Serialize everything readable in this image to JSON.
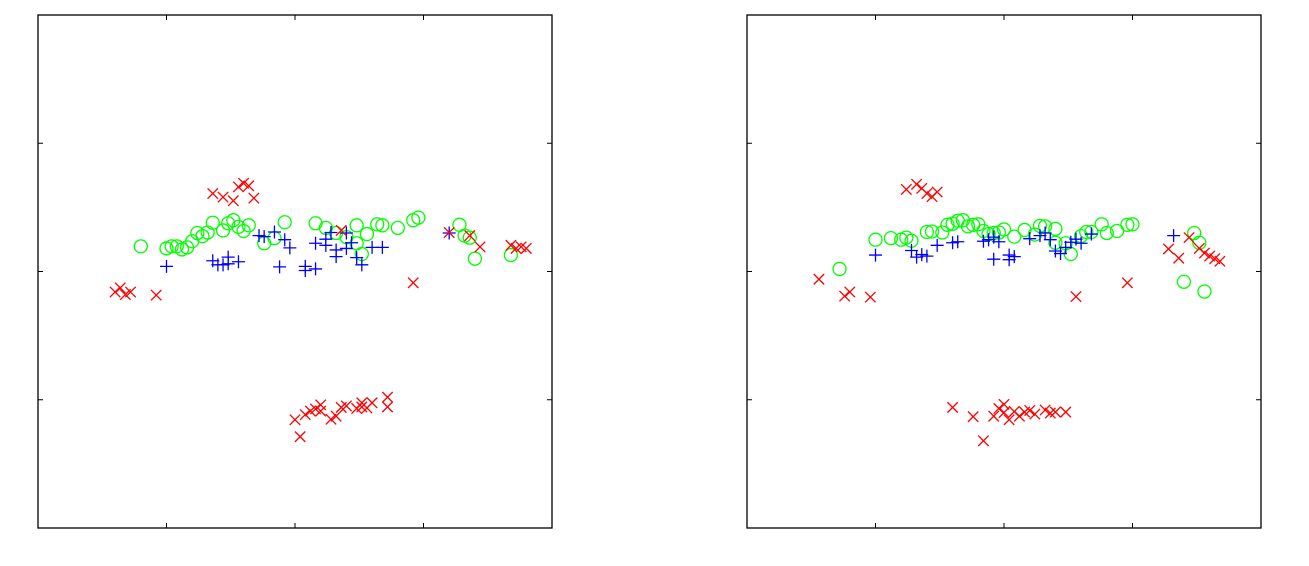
{
  "colors": {
    "circle": "#00ff00",
    "plus": "#0000ff",
    "cross": "#ff0000",
    "axes": "#000000"
  },
  "chart_data": [
    {
      "type": "scatter",
      "title": "",
      "xlabel": "",
      "ylabel": "",
      "xlim": [
        0,
        1
      ],
      "ylim": [
        0,
        1
      ],
      "xticks": [
        0.25,
        0.5,
        0.75
      ],
      "yticks": [
        0.25,
        0.5,
        0.75
      ],
      "grid": false,
      "legend": null,
      "series": [
        {
          "marker": "circle",
          "color": "#00ff00",
          "points": [
            [
              0.2,
              0.549
            ],
            [
              0.25,
              0.545
            ],
            [
              0.26,
              0.549
            ],
            [
              0.27,
              0.549
            ],
            [
              0.28,
              0.543
            ],
            [
              0.29,
              0.547
            ],
            [
              0.3,
              0.559
            ],
            [
              0.31,
              0.575
            ],
            [
              0.32,
              0.569
            ],
            [
              0.33,
              0.576
            ],
            [
              0.34,
              0.595
            ],
            [
              0.36,
              0.58
            ],
            [
              0.37,
              0.594
            ],
            [
              0.38,
              0.6
            ],
            [
              0.39,
              0.587
            ],
            [
              0.4,
              0.579
            ],
            [
              0.41,
              0.59
            ],
            [
              0.44,
              0.555
            ],
            [
              0.48,
              0.596
            ],
            [
              0.54,
              0.594
            ],
            [
              0.56,
              0.585
            ],
            [
              0.58,
              0.575
            ],
            [
              0.6,
              0.567
            ],
            [
              0.62,
              0.59
            ],
            [
              0.62,
              0.555
            ],
            [
              0.63,
              0.534
            ],
            [
              0.64,
              0.573
            ],
            [
              0.66,
              0.592
            ],
            [
              0.67,
              0.59
            ],
            [
              0.7,
              0.585
            ],
            [
              0.73,
              0.6
            ],
            [
              0.74,
              0.605
            ],
            [
              0.82,
              0.591
            ],
            [
              0.83,
              0.57
            ],
            [
              0.85,
              0.525
            ],
            [
              0.92,
              0.532
            ],
            [
              0.84,
              0.566
            ],
            [
              0.46,
              0.565
            ]
          ]
        },
        {
          "marker": "plus",
          "color": "#0000ff",
          "points": [
            [
              0.25,
              0.51
            ],
            [
              0.34,
              0.521
            ],
            [
              0.35,
              0.513
            ],
            [
              0.36,
              0.513
            ],
            [
              0.37,
              0.515
            ],
            [
              0.37,
              0.528
            ],
            [
              0.39,
              0.519
            ],
            [
              0.43,
              0.57
            ],
            [
              0.44,
              0.568
            ],
            [
              0.46,
              0.577
            ],
            [
              0.47,
              0.509
            ],
            [
              0.48,
              0.562
            ],
            [
              0.49,
              0.546
            ],
            [
              0.52,
              0.51
            ],
            [
              0.52,
              0.502
            ],
            [
              0.54,
              0.505
            ],
            [
              0.54,
              0.555
            ],
            [
              0.56,
              0.563
            ],
            [
              0.56,
              0.551
            ],
            [
              0.57,
              0.576
            ],
            [
              0.58,
              0.529
            ],
            [
              0.58,
              0.542
            ],
            [
              0.6,
              0.545
            ],
            [
              0.6,
              0.575
            ],
            [
              0.61,
              0.556
            ],
            [
              0.62,
              0.527
            ],
            [
              0.63,
              0.513
            ],
            [
              0.65,
              0.547
            ],
            [
              0.67,
              0.547
            ],
            [
              0.8,
              0.575
            ]
          ]
        },
        {
          "marker": "cross",
          "color": "#ff0000",
          "points": [
            [
              0.15,
              0.46
            ],
            [
              0.16,
              0.468
            ],
            [
              0.17,
              0.455
            ],
            [
              0.18,
              0.46
            ],
            [
              0.23,
              0.454
            ],
            [
              0.34,
              0.652
            ],
            [
              0.36,
              0.645
            ],
            [
              0.38,
              0.638
            ],
            [
              0.39,
              0.665
            ],
            [
              0.4,
              0.672
            ],
            [
              0.41,
              0.667
            ],
            [
              0.42,
              0.643
            ],
            [
              0.5,
              0.211
            ],
            [
              0.51,
              0.178
            ],
            [
              0.52,
              0.221
            ],
            [
              0.53,
              0.228
            ],
            [
              0.54,
              0.232
            ],
            [
              0.55,
              0.24
            ],
            [
              0.55,
              0.228
            ],
            [
              0.57,
              0.212
            ],
            [
              0.58,
              0.218
            ],
            [
              0.59,
              0.235
            ],
            [
              0.6,
              0.238
            ],
            [
              0.62,
              0.233
            ],
            [
              0.63,
              0.236
            ],
            [
              0.63,
              0.244
            ],
            [
              0.64,
              0.234
            ],
            [
              0.65,
              0.244
            ],
            [
              0.68,
              0.255
            ],
            [
              0.68,
              0.236
            ],
            [
              0.73,
              0.478
            ],
            [
              0.8,
              0.576
            ],
            [
              0.84,
              0.57
            ],
            [
              0.86,
              0.548
            ],
            [
              0.92,
              0.551
            ],
            [
              0.93,
              0.545
            ],
            [
              0.94,
              0.548
            ],
            [
              0.95,
              0.545
            ],
            [
              0.59,
              0.58
            ]
          ]
        }
      ]
    },
    {
      "type": "scatter",
      "title": "",
      "xlabel": "",
      "ylabel": "",
      "xlim": [
        0,
        1
      ],
      "ylim": [
        0,
        1
      ],
      "xticks": [
        0.25,
        0.5,
        0.75
      ],
      "yticks": [
        0.25,
        0.5,
        0.75
      ],
      "grid": false,
      "legend": null,
      "series": [
        {
          "marker": "circle",
          "color": "#00ff00",
          "points": [
            [
              0.18,
              0.505
            ],
            [
              0.25,
              0.562
            ],
            [
              0.28,
              0.565
            ],
            [
              0.3,
              0.562
            ],
            [
              0.31,
              0.566
            ],
            [
              0.32,
              0.56
            ],
            [
              0.35,
              0.577
            ],
            [
              0.36,
              0.578
            ],
            [
              0.38,
              0.576
            ],
            [
              0.4,
              0.593
            ],
            [
              0.41,
              0.599
            ],
            [
              0.42,
              0.6
            ],
            [
              0.43,
              0.588
            ],
            [
              0.44,
              0.591
            ],
            [
              0.45,
              0.592
            ],
            [
              0.46,
              0.579
            ],
            [
              0.47,
              0.573
            ],
            [
              0.48,
              0.575
            ],
            [
              0.5,
              0.582
            ],
            [
              0.52,
              0.568
            ],
            [
              0.54,
              0.581
            ],
            [
              0.57,
              0.589
            ],
            [
              0.58,
              0.588
            ],
            [
              0.6,
              0.583
            ],
            [
              0.6,
              0.556
            ],
            [
              0.62,
              0.555
            ],
            [
              0.63,
              0.534
            ],
            [
              0.65,
              0.569
            ],
            [
              0.66,
              0.577
            ],
            [
              0.67,
              0.577
            ],
            [
              0.7,
              0.575
            ],
            [
              0.72,
              0.579
            ],
            [
              0.74,
              0.591
            ],
            [
              0.75,
              0.592
            ],
            [
              0.87,
              0.575
            ],
            [
              0.88,
              0.556
            ],
            [
              0.89,
              0.461
            ],
            [
              0.85,
              0.48
            ],
            [
              0.69,
              0.592
            ],
            [
              0.39,
              0.591
            ],
            [
              0.49,
              0.576
            ],
            [
              0.56,
              0.572
            ]
          ]
        },
        {
          "marker": "plus",
          "color": "#0000ff",
          "points": [
            [
              0.25,
              0.532
            ],
            [
              0.32,
              0.541
            ],
            [
              0.33,
              0.528
            ],
            [
              0.34,
              0.533
            ],
            [
              0.35,
              0.53
            ],
            [
              0.37,
              0.551
            ],
            [
              0.4,
              0.556
            ],
            [
              0.41,
              0.558
            ],
            [
              0.46,
              0.559
            ],
            [
              0.47,
              0.562
            ],
            [
              0.48,
              0.524
            ],
            [
              0.48,
              0.567
            ],
            [
              0.49,
              0.558
            ],
            [
              0.51,
              0.523
            ],
            [
              0.51,
              0.532
            ],
            [
              0.52,
              0.529
            ],
            [
              0.55,
              0.564
            ],
            [
              0.57,
              0.57
            ],
            [
              0.58,
              0.575
            ],
            [
              0.59,
              0.562
            ],
            [
              0.6,
              0.54
            ],
            [
              0.61,
              0.535
            ],
            [
              0.62,
              0.547
            ],
            [
              0.63,
              0.557
            ],
            [
              0.64,
              0.563
            ],
            [
              0.65,
              0.555
            ],
            [
              0.67,
              0.573
            ],
            [
              0.83,
              0.57
            ]
          ]
        },
        {
          "marker": "cross",
          "color": "#ff0000",
          "points": [
            [
              0.14,
              0.485
            ],
            [
              0.19,
              0.452
            ],
            [
              0.2,
              0.46
            ],
            [
              0.24,
              0.45
            ],
            [
              0.31,
              0.66
            ],
            [
              0.33,
              0.67
            ],
            [
              0.34,
              0.662
            ],
            [
              0.35,
              0.652
            ],
            [
              0.36,
              0.646
            ],
            [
              0.37,
              0.655
            ],
            [
              0.4,
              0.235
            ],
            [
              0.44,
              0.217
            ],
            [
              0.46,
              0.17
            ],
            [
              0.48,
              0.218
            ],
            [
              0.49,
              0.233
            ],
            [
              0.5,
              0.241
            ],
            [
              0.5,
              0.225
            ],
            [
              0.51,
              0.211
            ],
            [
              0.52,
              0.227
            ],
            [
              0.53,
              0.218
            ],
            [
              0.54,
              0.226
            ],
            [
              0.55,
              0.229
            ],
            [
              0.56,
              0.222
            ],
            [
              0.58,
              0.23
            ],
            [
              0.59,
              0.224
            ],
            [
              0.6,
              0.226
            ],
            [
              0.62,
              0.226
            ],
            [
              0.64,
              0.451
            ],
            [
              0.74,
              0.478
            ],
            [
              0.82,
              0.544
            ],
            [
              0.84,
              0.526
            ],
            [
              0.86,
              0.566
            ],
            [
              0.88,
              0.545
            ],
            [
              0.89,
              0.536
            ],
            [
              0.9,
              0.53
            ],
            [
              0.91,
              0.525
            ],
            [
              0.92,
              0.52
            ]
          ]
        }
      ]
    }
  ]
}
